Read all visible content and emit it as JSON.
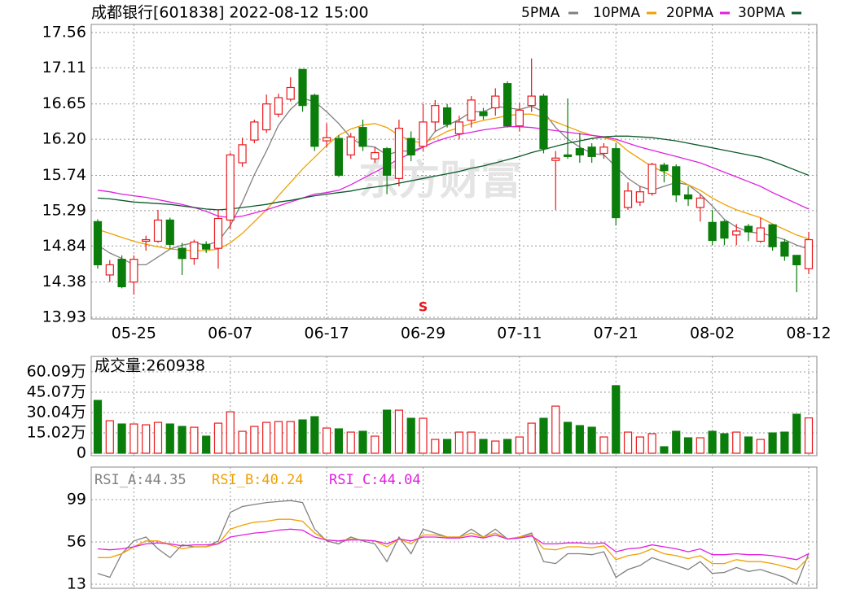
{
  "chart_data": [
    {
      "type": "candlestick",
      "title": "成都银行[601838] 2022-08-12 15:00",
      "watermark": "东方财富",
      "signal_marker": "S",
      "signal_index": 27,
      "up_color": "#e8191c",
      "down_color": "#0b7d0b",
      "categories": [
        null,
        null,
        null,
        "05-25",
        null,
        null,
        null,
        null,
        null,
        null,
        null,
        "06-07",
        null,
        null,
        null,
        null,
        null,
        null,
        null,
        "06-17",
        null,
        null,
        null,
        null,
        null,
        null,
        null,
        "06-29",
        null,
        null,
        null,
        null,
        null,
        null,
        null,
        "07-11",
        null,
        null,
        null,
        null,
        null,
        null,
        null,
        "07-21",
        null,
        null,
        null,
        null,
        null,
        null,
        null,
        "08-02",
        null,
        null,
        null,
        null,
        null,
        null,
        null,
        "08-12"
      ],
      "open": [
        15.15,
        14.47,
        14.67,
        14.38,
        14.9,
        14.9,
        15.17,
        14.81,
        14.68,
        14.86,
        14.81,
        15.17,
        15.9,
        16.19,
        16.32,
        16.52,
        16.71,
        17.09,
        16.76,
        16.18,
        16.21,
        16.0,
        16.35,
        15.95,
        16.08,
        15.7,
        16.21,
        16.11,
        16.42,
        16.6,
        16.27,
        16.44,
        16.55,
        16.6,
        16.91,
        16.37,
        16.63,
        16.75,
        15.93,
        16.0,
        16.08,
        16.1,
        16.02,
        16.08,
        15.33,
        15.4,
        15.51,
        15.87,
        15.85,
        15.49,
        15.33,
        15.14,
        15.15,
        14.98,
        15.09,
        14.9,
        15.11,
        14.89,
        14.72,
        14.55
      ],
      "high": [
        15.18,
        14.66,
        14.72,
        14.72,
        14.97,
        15.3,
        15.2,
        14.88,
        14.92,
        14.9,
        15.3,
        16.03,
        16.22,
        16.45,
        16.77,
        16.78,
        16.99,
        17.09,
        16.78,
        16.4,
        16.25,
        16.28,
        16.45,
        16.1,
        16.1,
        16.45,
        16.3,
        16.65,
        16.7,
        16.65,
        16.5,
        16.75,
        16.6,
        16.85,
        16.94,
        16.66,
        17.23,
        16.78,
        16.05,
        16.72,
        16.28,
        16.15,
        16.15,
        16.15,
        15.65,
        15.6,
        15.9,
        15.9,
        15.88,
        15.6,
        15.5,
        15.3,
        15.17,
        15.12,
        15.12,
        15.2,
        15.12,
        14.93,
        14.72,
        15.02
      ],
      "low": [
        14.55,
        14.38,
        14.3,
        14.22,
        14.78,
        14.88,
        14.8,
        14.47,
        14.6,
        14.75,
        14.55,
        15.05,
        15.85,
        16.15,
        16.28,
        16.48,
        16.68,
        16.55,
        16.05,
        16.1,
        15.72,
        15.95,
        16.05,
        15.9,
        15.5,
        15.6,
        15.92,
        16.05,
        16.3,
        16.35,
        16.2,
        16.35,
        16.45,
        16.5,
        16.35,
        16.3,
        16.55,
        16.02,
        15.3,
        15.95,
        15.9,
        15.9,
        15.95,
        15.1,
        15.3,
        15.35,
        15.48,
        15.65,
        15.4,
        15.35,
        15.15,
        14.85,
        14.85,
        14.85,
        14.9,
        14.88,
        14.78,
        14.65,
        14.25,
        14.48
      ],
      "close": [
        14.6,
        14.6,
        14.32,
        14.67,
        14.92,
        15.17,
        14.86,
        14.68,
        14.89,
        14.8,
        15.19,
        16.0,
        16.13,
        16.42,
        16.65,
        16.73,
        16.86,
        16.63,
        16.11,
        16.22,
        15.74,
        16.23,
        16.11,
        16.03,
        15.74,
        16.34,
        16.0,
        16.42,
        16.63,
        16.39,
        16.42,
        16.7,
        16.5,
        16.75,
        16.37,
        16.57,
        16.75,
        16.08,
        15.96,
        15.98,
        16.0,
        15.98,
        16.1,
        15.2,
        15.54,
        15.53,
        15.88,
        15.8,
        15.49,
        15.44,
        15.45,
        14.91,
        14.94,
        15.03,
        15.02,
        15.07,
        14.83,
        14.71,
        14.6,
        14.92
      ],
      "series": [
        {
          "name": "5PMA",
          "color": "#808080",
          "values": [
            14.85,
            14.75,
            14.68,
            14.6,
            14.6,
            14.7,
            14.8,
            14.85,
            14.88,
            14.85,
            14.9,
            15.1,
            15.4,
            15.75,
            16.05,
            16.38,
            16.58,
            16.72,
            16.68,
            16.55,
            16.4,
            16.22,
            16.12,
            16.1,
            16.0,
            16.05,
            16.05,
            16.1,
            16.3,
            16.38,
            16.45,
            16.55,
            16.55,
            16.62,
            16.6,
            16.58,
            16.62,
            16.55,
            16.35,
            16.2,
            16.1,
            16.02,
            16.0,
            15.85,
            15.7,
            15.6,
            15.55,
            15.6,
            15.65,
            15.62,
            15.5,
            15.35,
            15.18,
            15.08,
            15.02,
            15.0,
            14.97,
            14.92,
            14.85,
            14.8
          ]
        },
        {
          "name": "10PMA",
          "color": "#f0a000",
          "values": [
            15.05,
            15.0,
            14.95,
            14.9,
            14.86,
            14.83,
            14.8,
            14.79,
            14.78,
            14.78,
            14.8,
            14.88,
            15.0,
            15.15,
            15.3,
            15.48,
            15.65,
            15.82,
            15.97,
            16.12,
            16.25,
            16.33,
            16.38,
            16.4,
            16.35,
            16.25,
            16.18,
            16.15,
            16.22,
            16.3,
            16.35,
            16.4,
            16.44,
            16.47,
            16.5,
            16.52,
            16.52,
            16.48,
            16.42,
            16.36,
            16.3,
            16.25,
            16.22,
            16.18,
            16.05,
            15.95,
            15.85,
            15.78,
            15.7,
            15.62,
            15.55,
            15.45,
            15.37,
            15.3,
            15.25,
            15.2,
            15.12,
            15.05,
            14.98,
            14.93
          ]
        },
        {
          "name": "20PMA",
          "color": "#e020e0",
          "values": [
            15.55,
            15.53,
            15.5,
            15.48,
            15.46,
            15.43,
            15.4,
            15.37,
            15.33,
            15.28,
            15.22,
            15.2,
            15.22,
            15.26,
            15.3,
            15.35,
            15.4,
            15.45,
            15.5,
            15.52,
            15.55,
            15.62,
            15.7,
            15.78,
            15.86,
            15.95,
            16.02,
            16.1,
            16.17,
            16.22,
            16.26,
            16.29,
            16.32,
            16.34,
            16.36,
            16.36,
            16.35,
            16.33,
            16.31,
            16.29,
            16.27,
            16.25,
            16.23,
            16.2,
            16.15,
            16.1,
            16.06,
            16.02,
            15.98,
            15.94,
            15.9,
            15.84,
            15.78,
            15.72,
            15.66,
            15.6,
            15.52,
            15.45,
            15.38,
            15.31
          ]
        },
        {
          "name": "30PMA",
          "color": "#0a5a2a",
          "values": [
            15.45,
            15.44,
            15.42,
            15.4,
            15.39,
            15.38,
            15.37,
            15.35,
            15.33,
            15.31,
            15.3,
            15.31,
            15.33,
            15.35,
            15.37,
            15.4,
            15.42,
            15.45,
            15.48,
            15.5,
            15.52,
            15.54,
            15.57,
            15.59,
            15.61,
            15.64,
            15.67,
            15.7,
            15.73,
            15.76,
            15.79,
            15.83,
            15.86,
            15.9,
            15.94,
            15.98,
            16.03,
            16.07,
            16.11,
            16.15,
            16.18,
            16.21,
            16.23,
            16.24,
            16.24,
            16.23,
            16.22,
            16.2,
            16.18,
            16.15,
            16.12,
            16.09,
            16.06,
            16.03,
            16.0,
            15.97,
            15.92,
            15.86,
            15.8,
            15.74
          ]
        }
      ],
      "ylim": [
        13.93,
        17.56
      ],
      "yticks": [
        {
          "value": 13.93,
          "label": "13.93"
        },
        14.38,
        14.84,
        15.29,
        15.74,
        {
          "value": 16.2,
          "label": "16.20"
        },
        16.65,
        17.11,
        17.56
      ],
      "grid": true
    },
    {
      "type": "bar",
      "title": "成交量:260938",
      "values": [
        39,
        24,
        21.6,
        21.6,
        21,
        22.8,
        21.6,
        19.8,
        19.2,
        12.6,
        22.2,
        30.6,
        16.2,
        19.8,
        22.8,
        23.4,
        23.4,
        24.6,
        27,
        18.6,
        18,
        15.6,
        16.2,
        12.6,
        31.8,
        31.8,
        25.8,
        25.8,
        10.2,
        10.2,
        15.6,
        15.6,
        10.2,
        9,
        10.2,
        12,
        22.2,
        25.8,
        34.8,
        22.8,
        20.4,
        19.2,
        12,
        49.9,
        15.6,
        12,
        14.4,
        4.8,
        16.2,
        11.4,
        11.4,
        16.2,
        14.4,
        15.6,
        12,
        10.2,
        15,
        15.6,
        28.8,
        26.09
      ],
      "ylim": [
        0,
        60.09
      ],
      "yticks": [
        0,
        {
          "value": 15.02,
          "label": "15.02万"
        },
        {
          "value": 30.04,
          "label": "30.04万"
        },
        {
          "value": 45.07,
          "label": "45.07万"
        },
        {
          "value": 60.09,
          "label": "60.09万"
        }
      ]
    },
    {
      "type": "line",
      "series": [
        {
          "name": "RSI_A:44.35",
          "color": "#808080",
          "values": [
            24,
            20,
            44,
            57,
            61,
            49,
            40,
            53,
            51,
            51,
            57,
            86,
            92,
            94,
            96,
            97,
            98,
            96,
            69,
            57,
            54,
            61,
            57,
            54,
            36,
            61,
            44,
            69,
            65,
            61,
            61,
            69,
            61,
            69,
            59,
            61,
            65,
            36,
            34,
            44,
            44,
            43,
            46,
            20,
            28,
            32,
            40,
            36,
            32,
            28,
            36,
            24,
            25,
            30,
            26,
            28,
            24,
            20,
            13,
            44.35
          ]
        },
        {
          "name": "RSI_B:40.24",
          "color": "#f0a000",
          "values": [
            40,
            40,
            44,
            51,
            57,
            57,
            53,
            49,
            51,
            51,
            54,
            69,
            73,
            76,
            77,
            79,
            79,
            77,
            65,
            58,
            57,
            59,
            58,
            57,
            51,
            59,
            54,
            63,
            63,
            61,
            61,
            65,
            61,
            65,
            59,
            61,
            63,
            49,
            48,
            51,
            51,
            50,
            52,
            38,
            42,
            44,
            49,
            44,
            42,
            39,
            42,
            34,
            34,
            38,
            36,
            36,
            34,
            31,
            28,
            40.24
          ]
        },
        {
          "name": "RSI_C:44.04",
          "color": "#e020e0",
          "values": [
            49,
            48,
            49,
            51,
            54,
            55,
            54,
            52,
            53,
            53,
            54,
            61,
            63,
            65,
            66,
            68,
            69,
            68,
            61,
            58,
            57,
            58,
            58,
            57,
            54,
            59,
            57,
            61,
            61,
            60,
            60,
            62,
            60,
            63,
            59,
            60,
            62,
            54,
            54,
            55,
            55,
            54,
            55,
            46,
            49,
            50,
            53,
            51,
            49,
            46,
            49,
            43,
            43,
            44,
            43,
            43,
            42,
            40,
            38,
            44.04
          ]
        }
      ],
      "ylim": [
        13,
        99
      ],
      "yticks": [
        13,
        56,
        99
      ]
    }
  ]
}
